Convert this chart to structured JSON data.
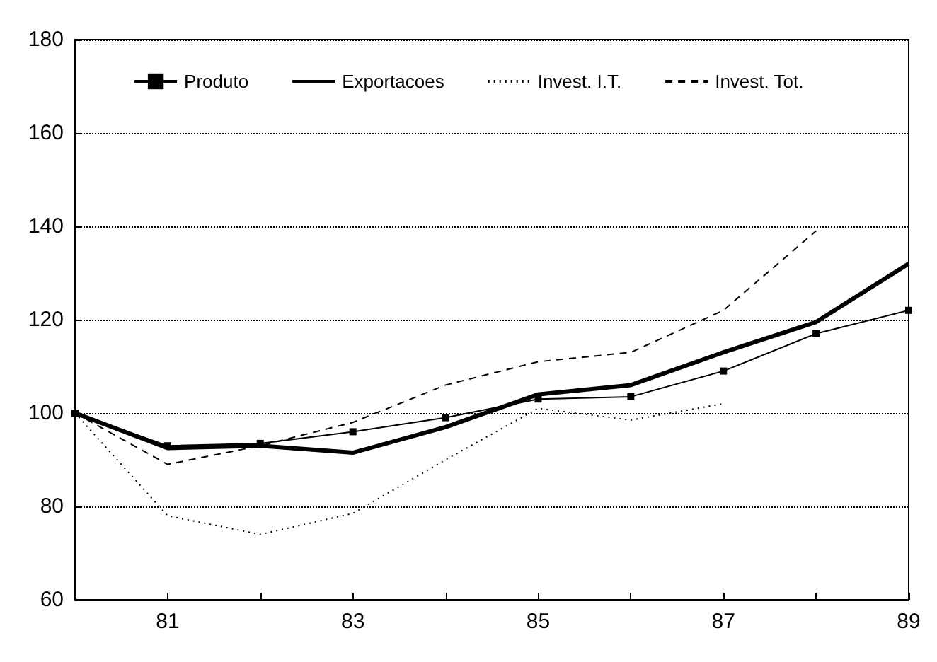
{
  "chart_data": {
    "type": "line",
    "x": [
      80,
      81,
      82,
      83,
      84,
      85,
      86,
      87,
      88,
      89
    ],
    "series": [
      {
        "name": "Produto",
        "color": "#000000",
        "marker": "square",
        "line_style": "solid",
        "values": [
          100,
          93,
          93.5,
          96,
          99,
          103,
          103.5,
          109,
          117,
          122
        ]
      },
      {
        "name": "Exportacoes",
        "color": "#000000",
        "marker": "none",
        "line_style": "solid",
        "values": [
          100,
          92.5,
          93,
          91.5,
          97,
          104,
          106,
          113,
          119.5,
          132
        ]
      },
      {
        "name": "Invest. I.T.",
        "color": "#000000",
        "marker": "none",
        "line_style": "dotted",
        "values": [
          100,
          78,
          74,
          78.5,
          90,
          101,
          98.5,
          102,
          null,
          null
        ]
      },
      {
        "name": "Invest. Tot.",
        "color": "#000000",
        "marker": "none",
        "line_style": "dashed",
        "values": [
          100,
          89,
          93,
          98,
          106,
          111,
          113,
          122,
          139,
          null
        ]
      }
    ],
    "xlim": [
      80,
      89
    ],
    "xticks": [
      {
        "value": 80,
        "label": null
      },
      81,
      {
        "value": 82,
        "label": null
      },
      83,
      {
        "value": 84,
        "label": null
      },
      85,
      {
        "value": 86,
        "label": null
      },
      87,
      {
        "value": 88,
        "label": null
      },
      89
    ],
    "ylim": [
      60,
      180
    ],
    "yticks": [
      60,
      80,
      100,
      120,
      140,
      160,
      180
    ],
    "grid": "y",
    "legend": "top"
  }
}
